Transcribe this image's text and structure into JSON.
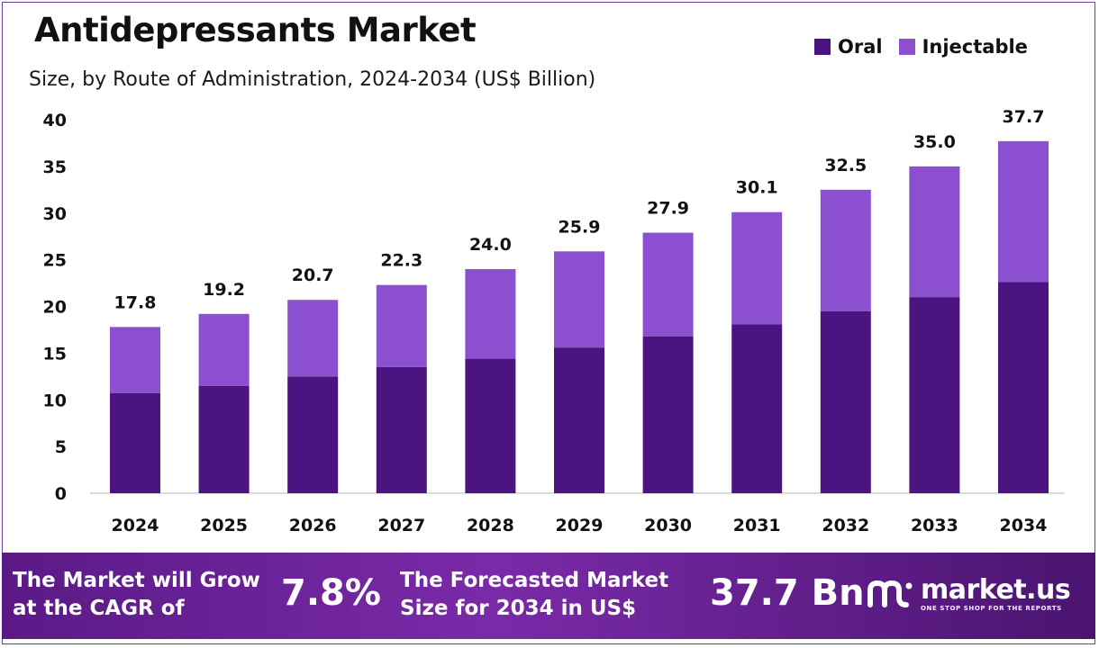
{
  "header": {
    "title": "Antidepressants Market",
    "subtitle": "Size, by Route of Administration, 2024-2034 (US$ Billion)"
  },
  "legend": [
    {
      "label": "Oral",
      "color": "#4b1480"
    },
    {
      "label": "Injectable",
      "color": "#8b4fcf"
    }
  ],
  "chart_data": {
    "type": "bar",
    "stacked": true,
    "categories": [
      "2024",
      "2025",
      "2026",
      "2027",
      "2028",
      "2029",
      "2030",
      "2031",
      "2032",
      "2033",
      "2034"
    ],
    "series": [
      {
        "name": "Oral",
        "color": "#4b1480",
        "values": [
          10.7,
          11.5,
          12.5,
          13.5,
          14.4,
          15.6,
          16.8,
          18.1,
          19.5,
          21.0,
          22.6
        ]
      },
      {
        "name": "Injectable",
        "color": "#8b4fcf",
        "values": [
          7.1,
          7.7,
          8.2,
          8.8,
          9.6,
          10.3,
          11.1,
          12.0,
          13.0,
          14.0,
          15.1
        ]
      }
    ],
    "totals": [
      "17.8",
      "19.2",
      "20.7",
      "22.3",
      "24.0",
      "25.9",
      "27.9",
      "30.1",
      "32.5",
      "35.0",
      "37.7"
    ],
    "yticks": [
      "0",
      "5",
      "10",
      "15",
      "20",
      "25",
      "30",
      "35",
      "40"
    ],
    "ylim": [
      0,
      40
    ],
    "grid": false,
    "legend_position": "top-right"
  },
  "footer": {
    "cagr_label": "The Market will Grow at the CAGR of",
    "cagr_value": "7.8%",
    "size_label": "The Forecasted Market Size for 2034 in US$",
    "size_value": "37.7 Bn",
    "logo_name": "market.us",
    "logo_tagline": "ONE STOP SHOP FOR THE REPORTS"
  }
}
